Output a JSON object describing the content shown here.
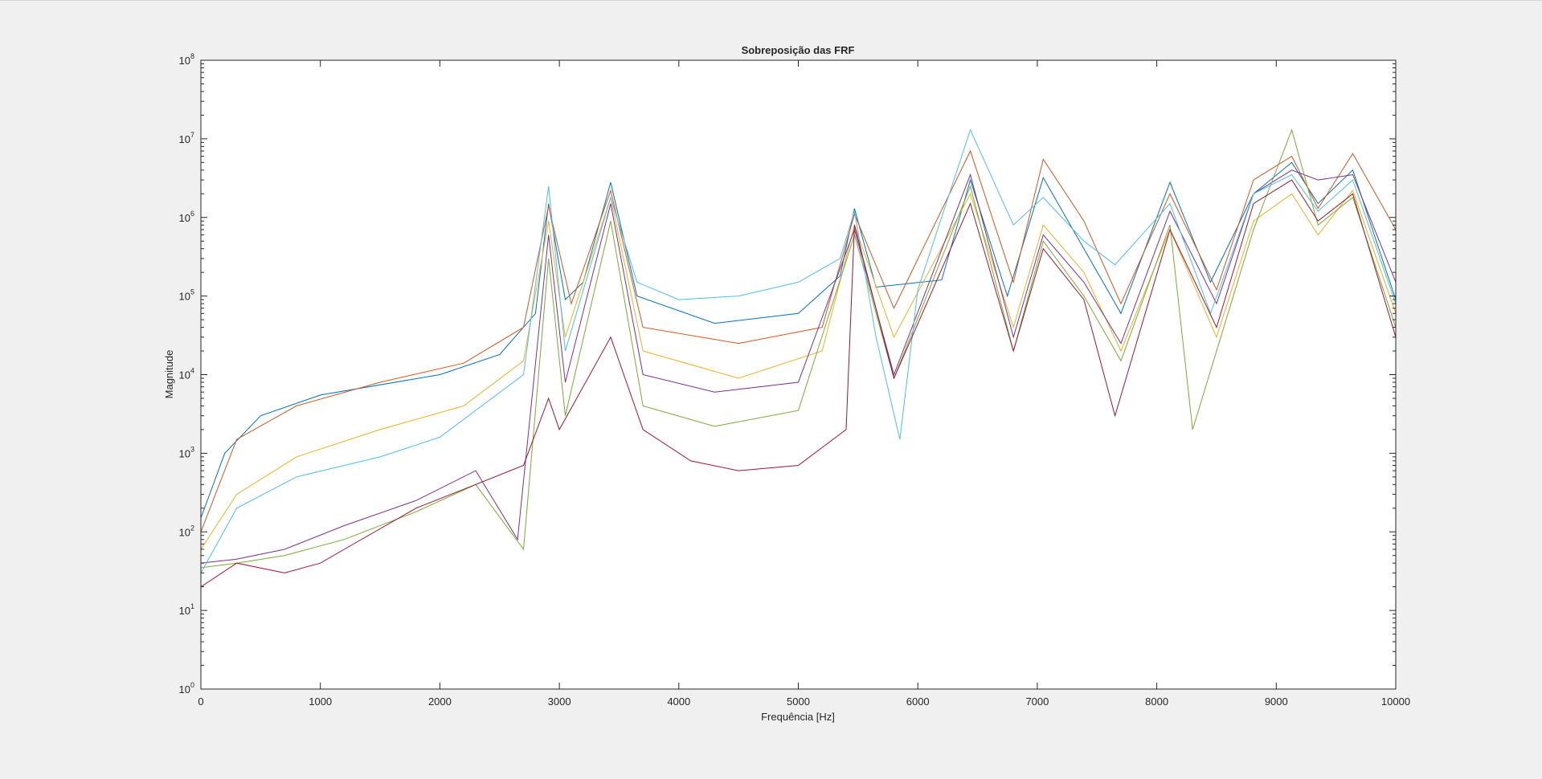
{
  "chart_data": {
    "type": "line",
    "title": "Sobreposição das FRF",
    "xlabel": "Frequência [Hz]",
    "ylabel": "Magnitude",
    "xlim": [
      0,
      10000
    ],
    "ylim": [
      1,
      100000000
    ],
    "yscale": "log",
    "grid": false,
    "legend": "none",
    "x_ticks": [
      0,
      1000,
      2000,
      3000,
      4000,
      5000,
      6000,
      7000,
      8000,
      9000,
      10000
    ],
    "x_tick_labels": [
      "0",
      "1000",
      "2000",
      "3000",
      "4000",
      "5000",
      "6000",
      "7000",
      "8000",
      "9000",
      "10000"
    ],
    "y_tick_exponents": [
      0,
      1,
      2,
      3,
      4,
      5,
      6,
      7,
      8
    ],
    "y_tick_base": "10",
    "resonance_peaks_hz": [
      2910,
      3430,
      5470,
      6440,
      7050,
      7390,
      8110,
      8810,
      9130,
      9350,
      9640
    ],
    "series": [
      {
        "color": "#0072BD",
        "values": [
          [
            0,
            150
          ],
          [
            200,
            1000
          ],
          [
            500,
            3000
          ],
          [
            1000,
            5500
          ],
          [
            2000,
            10000
          ],
          [
            2500,
            18000
          ],
          [
            2800,
            60000
          ],
          [
            2910,
            1500000
          ],
          [
            3050,
            90000
          ],
          [
            3200,
            150000
          ],
          [
            3430,
            2800000
          ],
          [
            3650,
            100000
          ],
          [
            4300,
            45000
          ],
          [
            5000,
            60000
          ],
          [
            5350,
            180000
          ],
          [
            5470,
            1300000
          ],
          [
            5650,
            130000
          ],
          [
            6200,
            160000
          ],
          [
            6440,
            3000000
          ],
          [
            6750,
            100000
          ],
          [
            7050,
            3200000
          ],
          [
            7390,
            400000
          ],
          [
            7700,
            60000
          ],
          [
            8110,
            2800000
          ],
          [
            8450,
            150000
          ],
          [
            8810,
            2000000
          ],
          [
            9130,
            5000000
          ],
          [
            9350,
            1500000
          ],
          [
            9640,
            4000000
          ],
          [
            10000,
            90000
          ]
        ]
      },
      {
        "color": "#D95319",
        "values": [
          [
            0,
            100
          ],
          [
            300,
            1500
          ],
          [
            800,
            4000
          ],
          [
            1500,
            8000
          ],
          [
            2200,
            14000
          ],
          [
            2700,
            40000
          ],
          [
            2910,
            1400000
          ],
          [
            3100,
            80000
          ],
          [
            3430,
            2200000
          ],
          [
            3700,
            40000
          ],
          [
            4500,
            25000
          ],
          [
            5200,
            40000
          ],
          [
            5470,
            1100000
          ],
          [
            5800,
            70000
          ],
          [
            6440,
            7000000
          ],
          [
            6800,
            150000
          ],
          [
            7050,
            5500000
          ],
          [
            7390,
            900000
          ],
          [
            7700,
            80000
          ],
          [
            8110,
            2000000
          ],
          [
            8500,
            120000
          ],
          [
            8810,
            3000000
          ],
          [
            9130,
            6000000
          ],
          [
            9350,
            1300000
          ],
          [
            9640,
            6500000
          ],
          [
            10000,
            700000
          ]
        ]
      },
      {
        "color": "#EDB120",
        "values": [
          [
            0,
            60
          ],
          [
            300,
            300
          ],
          [
            800,
            900
          ],
          [
            1500,
            2000
          ],
          [
            2200,
            4000
          ],
          [
            2700,
            15000
          ],
          [
            2910,
            900000
          ],
          [
            3050,
            30000
          ],
          [
            3430,
            1800000
          ],
          [
            3700,
            20000
          ],
          [
            4500,
            9000
          ],
          [
            5200,
            20000
          ],
          [
            5470,
            800000
          ],
          [
            5800,
            30000
          ],
          [
            6440,
            2000000
          ],
          [
            6800,
            40000
          ],
          [
            7050,
            800000
          ],
          [
            7390,
            200000
          ],
          [
            7700,
            20000
          ],
          [
            8110,
            700000
          ],
          [
            8500,
            30000
          ],
          [
            8810,
            900000
          ],
          [
            9130,
            2000000
          ],
          [
            9350,
            600000
          ],
          [
            9640,
            2200000
          ],
          [
            10000,
            60000
          ]
        ]
      },
      {
        "color": "#7E2F8E",
        "values": [
          [
            0,
            40
          ],
          [
            300,
            45
          ],
          [
            700,
            60
          ],
          [
            1200,
            120
          ],
          [
            1800,
            250
          ],
          [
            2300,
            600
          ],
          [
            2650,
            80
          ],
          [
            2910,
            600000
          ],
          [
            3050,
            8000
          ],
          [
            3430,
            1500000
          ],
          [
            3700,
            10000
          ],
          [
            4300,
            6000
          ],
          [
            5000,
            8000
          ],
          [
            5470,
            700000
          ],
          [
            5800,
            10000
          ],
          [
            6440,
            3500000
          ],
          [
            6800,
            30000
          ],
          [
            7050,
            600000
          ],
          [
            7390,
            150000
          ],
          [
            7700,
            25000
          ],
          [
            8110,
            1200000
          ],
          [
            8500,
            80000
          ],
          [
            8810,
            2000000
          ],
          [
            9130,
            4000000
          ],
          [
            9350,
            3000000
          ],
          [
            9640,
            3500000
          ],
          [
            10000,
            150000
          ]
        ]
      },
      {
        "color": "#77AC30",
        "values": [
          [
            0,
            35
          ],
          [
            300,
            40
          ],
          [
            700,
            50
          ],
          [
            1200,
            80
          ],
          [
            1800,
            180
          ],
          [
            2300,
            400
          ],
          [
            2700,
            60
          ],
          [
            2910,
            300000
          ],
          [
            3050,
            3000
          ],
          [
            3430,
            900000
          ],
          [
            3700,
            4000
          ],
          [
            4300,
            2200
          ],
          [
            5000,
            3500
          ],
          [
            5470,
            600000
          ],
          [
            5800,
            9000
          ],
          [
            6440,
            2500000
          ],
          [
            6800,
            20000
          ],
          [
            7050,
            500000
          ],
          [
            7390,
            100000
          ],
          [
            7700,
            15000
          ],
          [
            8110,
            800000
          ],
          [
            8300,
            2000
          ],
          [
            8810,
            700000
          ],
          [
            9130,
            13000000
          ],
          [
            9350,
            800000
          ],
          [
            9640,
            1800000
          ],
          [
            10000,
            40000
          ]
        ]
      },
      {
        "color": "#4DBEEE",
        "values": [
          [
            0,
            30
          ],
          [
            300,
            200
          ],
          [
            800,
            500
          ],
          [
            1500,
            900
          ],
          [
            2000,
            1600
          ],
          [
            2700,
            10000
          ],
          [
            2910,
            2500000
          ],
          [
            3050,
            20000
          ],
          [
            3430,
            1800000
          ],
          [
            3650,
            150000
          ],
          [
            4000,
            90000
          ],
          [
            4500,
            100000
          ],
          [
            5000,
            150000
          ],
          [
            5350,
            300000
          ],
          [
            5470,
            1200000
          ],
          [
            5650,
            30000
          ],
          [
            5850,
            1500
          ],
          [
            6000,
            120000
          ],
          [
            6440,
            13000000
          ],
          [
            6800,
            800000
          ],
          [
            7050,
            1800000
          ],
          [
            7390,
            500000
          ],
          [
            7650,
            250000
          ],
          [
            8110,
            1500000
          ],
          [
            8450,
            60000
          ],
          [
            8810,
            2000000
          ],
          [
            9130,
            3500000
          ],
          [
            9350,
            1200000
          ],
          [
            9640,
            3000000
          ],
          [
            10000,
            80000
          ]
        ]
      },
      {
        "color": "#A2142F",
        "values": [
          [
            0,
            20
          ],
          [
            300,
            40
          ],
          [
            700,
            30
          ],
          [
            1000,
            40
          ],
          [
            1200,
            60
          ],
          [
            1800,
            200
          ],
          [
            2300,
            400
          ],
          [
            2700,
            700
          ],
          [
            2910,
            5000
          ],
          [
            3000,
            2000
          ],
          [
            3430,
            30000
          ],
          [
            3700,
            2000
          ],
          [
            4100,
            800
          ],
          [
            4500,
            600
          ],
          [
            5000,
            700
          ],
          [
            5400,
            2000
          ],
          [
            5470,
            800000
          ],
          [
            5800,
            9000
          ],
          [
            6440,
            1500000
          ],
          [
            6800,
            20000
          ],
          [
            7050,
            400000
          ],
          [
            7390,
            90000
          ],
          [
            7650,
            3000
          ],
          [
            8110,
            700000
          ],
          [
            8500,
            40000
          ],
          [
            8810,
            1500000
          ],
          [
            9130,
            3000000
          ],
          [
            9350,
            900000
          ],
          [
            9640,
            2000000
          ],
          [
            10000,
            30000
          ]
        ]
      }
    ]
  }
}
